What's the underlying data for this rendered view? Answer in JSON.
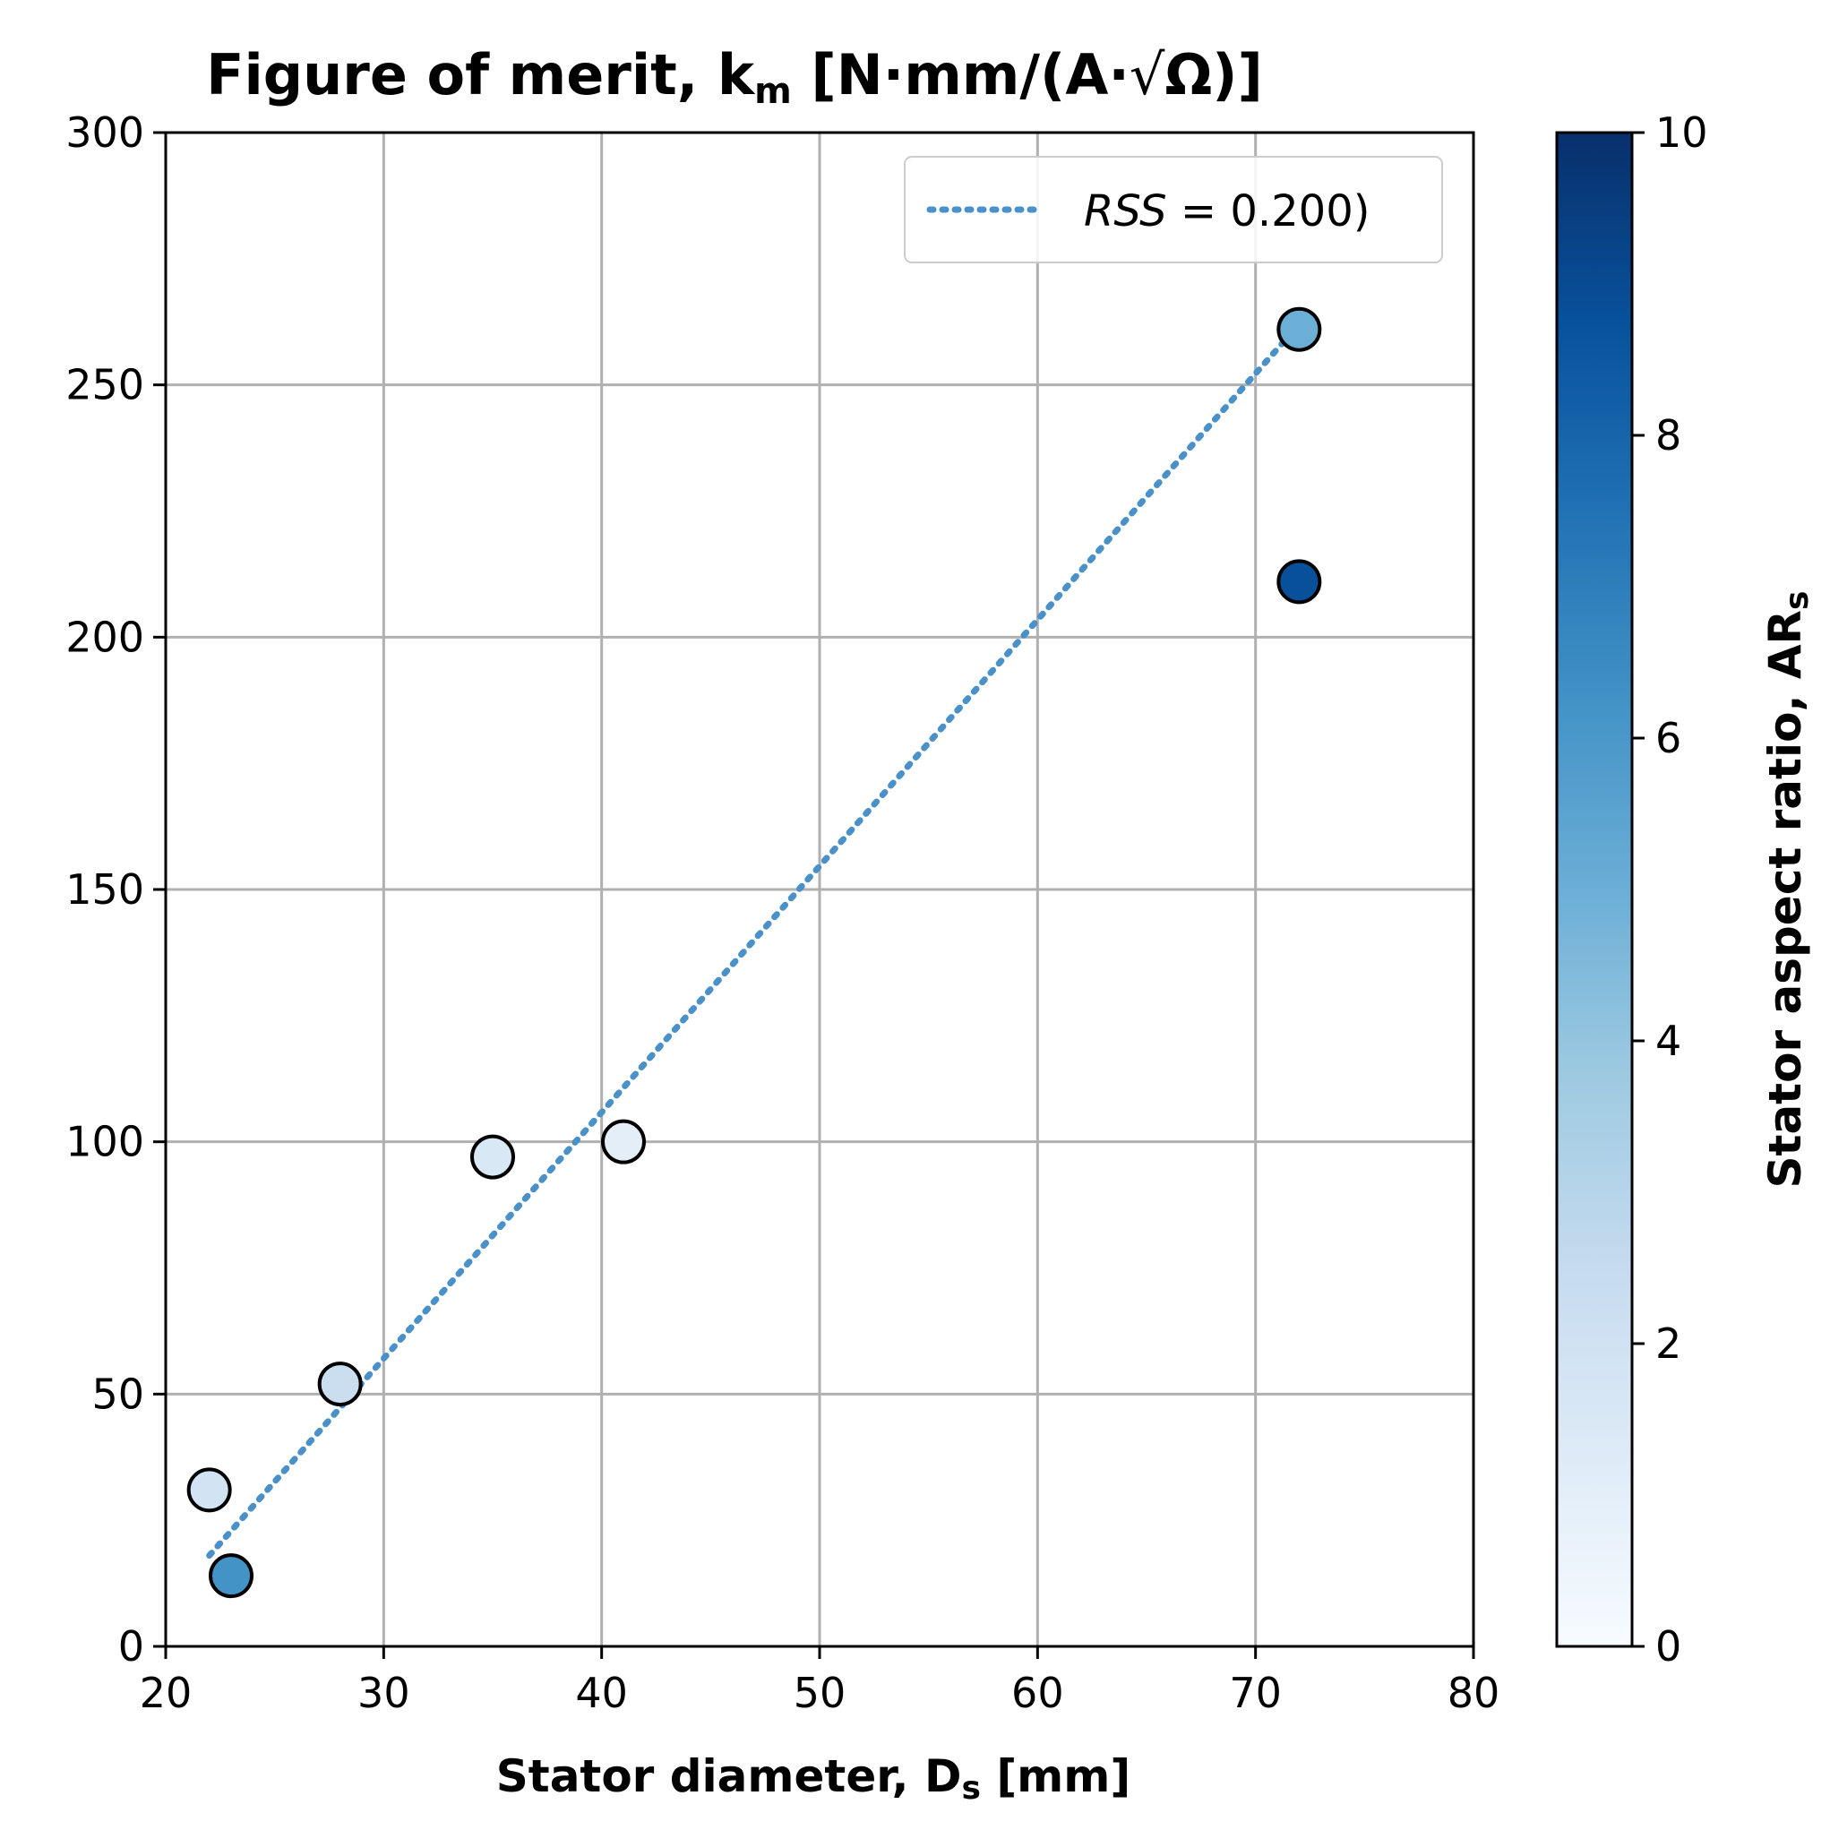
{
  "chart_data": {
    "type": "scatter",
    "title": {
      "text_main": "Figure of merit, k",
      "text_sub": "m",
      "text_units_open": " [N·mm/(A·",
      "text_sqrt_arg": "Ω",
      "text_units_close": ")]"
    },
    "xlabel": {
      "main": "Stator diameter, D",
      "sub": "s",
      "rest": " [mm]"
    },
    "ylabel": "",
    "xlim": [
      20,
      80
    ],
    "ylim": [
      0,
      300
    ],
    "xticks": [
      20,
      30,
      40,
      50,
      60,
      70,
      80
    ],
    "yticks": [
      0,
      50,
      100,
      150,
      200,
      250,
      300
    ],
    "grid": true,
    "points": [
      {
        "x": 22,
        "y": 31,
        "c": 1.9
      },
      {
        "x": 23,
        "y": 14,
        "c": 6.2
      },
      {
        "x": 28,
        "y": 52,
        "c": 2.3
      },
      {
        "x": 35,
        "y": 97,
        "c": 1.5
      },
      {
        "x": 41,
        "y": 100,
        "c": 1.0
      },
      {
        "x": 72,
        "y": 261,
        "c": 5.0
      },
      {
        "x": 72,
        "y": 211,
        "c": 8.8
      }
    ],
    "fit_line": {
      "style": "dotted",
      "color": "#4a90c9",
      "x": [
        22,
        72
      ],
      "y": [
        18,
        262
      ]
    },
    "legend": {
      "position": "top-right",
      "label_italic": "RSS",
      "label_rest": " = 0.200)"
    },
    "colorbar": {
      "label_main": "Stator aspect ratio, AR",
      "label_sub": "s",
      "range": [
        0,
        10
      ],
      "ticks": [
        0,
        2,
        4,
        6,
        8,
        10
      ],
      "colormap": "Blues",
      "stops": [
        "#f7fbff",
        "#deebf7",
        "#c6dbef",
        "#9ecae1",
        "#6baed6",
        "#4292c6",
        "#2171b5",
        "#08519c",
        "#08306b"
      ]
    }
  }
}
